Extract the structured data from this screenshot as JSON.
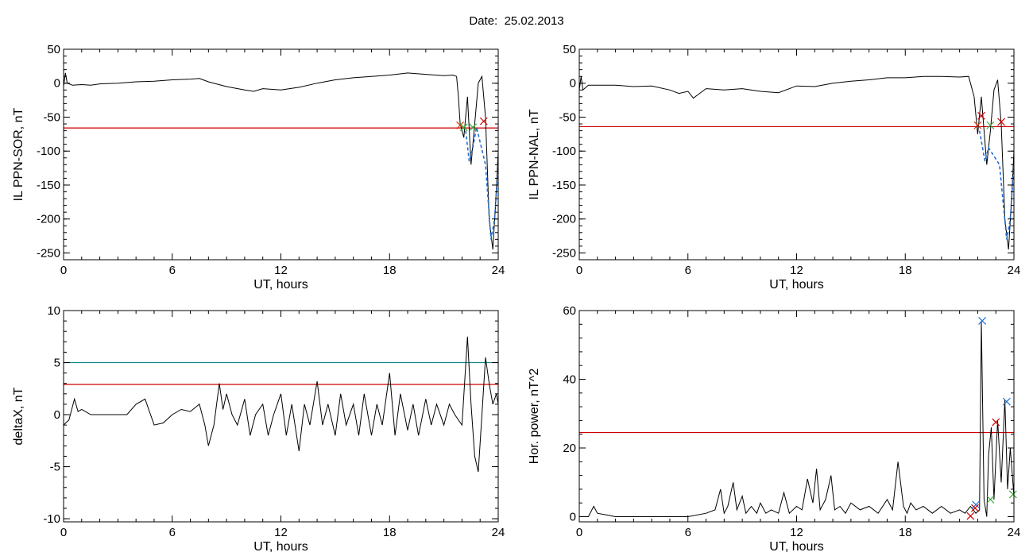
{
  "header": {
    "date_label": "Date:",
    "date_value": "25.02.2013"
  },
  "chart_data": [
    {
      "id": "il-sor",
      "type": "line",
      "xlabel": "UT, hours",
      "ylabel": "IL PPN-SOR, nT",
      "xlim": [
        0,
        24
      ],
      "ylim": [
        -260,
        50
      ],
      "xticks": [
        "0",
        "6",
        "12",
        "18",
        "24"
      ],
      "yticks": [
        "50",
        "0",
        "-50",
        "-100",
        "-150",
        "-200",
        "-250"
      ],
      "series": [
        {
          "color": "#000000",
          "x": [
            0,
            0.1,
            0.2,
            0.5,
            1,
            1.5,
            2,
            3,
            4,
            5,
            6,
            7,
            7.5,
            8,
            9,
            10,
            10.5,
            11,
            12,
            13,
            14,
            15,
            16,
            17,
            18,
            19,
            20,
            21,
            21.5,
            21.7,
            21.8,
            21.9
          ],
          "y": [
            -5,
            15,
            0,
            -3,
            -2,
            -3,
            -1,
            0,
            2,
            3,
            5,
            6,
            7,
            2,
            -5,
            -10,
            -12,
            -8,
            -10,
            -6,
            0,
            5,
            8,
            10,
            12,
            15,
            13,
            11,
            12,
            10,
            -20,
            -60
          ]
        },
        {
          "color": "#000000",
          "x": [
            21.9,
            22.1,
            22.3,
            22.5,
            22.7,
            22.9,
            23.1,
            23.3,
            23.5,
            23.7,
            23.85,
            24
          ],
          "y": [
            -60,
            -80,
            -20,
            -120,
            -60,
            0,
            10,
            -50,
            -200,
            -245,
            -180,
            -100
          ]
        },
        {
          "color": "#1f6fd6",
          "dash": "4,3",
          "x": [
            22.2,
            22.4,
            22.6,
            22.8,
            23.3,
            23.6,
            23.8,
            24
          ],
          "y": [
            -70,
            -115,
            -95,
            -65,
            -120,
            -230,
            -200,
            -120
          ]
        }
      ],
      "hlines": [
        {
          "y": -66,
          "color": "#cc0000"
        }
      ],
      "markers": [
        {
          "x": 21.9,
          "y": -62,
          "color": "#cc3300"
        },
        {
          "x": 22.1,
          "y": -65,
          "color": "#33aa33"
        },
        {
          "x": 22.6,
          "y": -65,
          "color": "#33aa33"
        },
        {
          "x": 23.2,
          "y": -56,
          "color": "#cc0000"
        }
      ]
    },
    {
      "id": "il-nal",
      "type": "line",
      "xlabel": "UT, hours",
      "ylabel": "IL PPN-NAL, nT",
      "xlim": [
        0,
        24
      ],
      "ylim": [
        -260,
        50
      ],
      "xticks": [
        "0",
        "6",
        "12",
        "18",
        "24"
      ],
      "yticks": [
        "50",
        "0",
        "-50",
        "-100",
        "-150",
        "-200",
        "-250"
      ],
      "series": [
        {
          "color": "#000000",
          "x": [
            0,
            0.1,
            0.2,
            0.5,
            1,
            2,
            3,
            4,
            5,
            5.5,
            6,
            6.3,
            6.5,
            7,
            8,
            9,
            10,
            11,
            12,
            13,
            14,
            15,
            16,
            17,
            18,
            19,
            20,
            21,
            21.5,
            21.8
          ],
          "y": [
            -10,
            10,
            -10,
            -3,
            -3,
            -3,
            -5,
            -4,
            -10,
            -15,
            -12,
            -22,
            -18,
            -8,
            -10,
            -8,
            -12,
            -14,
            -4,
            -5,
            0,
            3,
            5,
            8,
            8,
            10,
            10,
            9,
            10,
            -20
          ]
        },
        {
          "color": "#000000",
          "x": [
            21.8,
            22.0,
            22.2,
            22.5,
            22.7,
            22.9,
            23.1,
            23.3,
            23.5,
            23.7,
            23.85,
            24
          ],
          "y": [
            -20,
            -75,
            -20,
            -120,
            -70,
            -10,
            5,
            -60,
            -200,
            -245,
            -180,
            -100
          ]
        },
        {
          "color": "#1f6fd6",
          "dash": "4,3",
          "x": [
            22.1,
            22.4,
            22.6,
            23.2,
            23.6,
            23.8,
            24
          ],
          "y": [
            -70,
            -115,
            -95,
            -120,
            -230,
            -200,
            -120
          ]
        }
      ],
      "hlines": [
        {
          "y": -64,
          "color": "#cc0000"
        }
      ],
      "markers": [
        {
          "x": 22.0,
          "y": -62,
          "color": "#cc3300"
        },
        {
          "x": 22.2,
          "y": -48,
          "color": "#cc0000"
        },
        {
          "x": 22.7,
          "y": -62,
          "color": "#33aa33"
        },
        {
          "x": 23.3,
          "y": -57,
          "color": "#cc0000"
        }
      ]
    },
    {
      "id": "delta-x",
      "type": "line",
      "xlabel": "UT, hours",
      "ylabel": "deltaX, nT",
      "xlim": [
        0,
        24
      ],
      "ylim": [
        -10.3,
        10
      ],
      "xticks": [
        "0",
        "6",
        "12",
        "18",
        "24"
      ],
      "yticks": [
        "10",
        "5",
        "0",
        "-5",
        "-10"
      ],
      "series": [
        {
          "color": "#000000",
          "x": [
            0,
            0.3,
            0.6,
            0.8,
            1,
            1.5,
            2,
            2.5,
            3,
            3.5,
            4,
            4.5,
            5,
            5.5,
            6,
            6.5,
            7,
            7.5,
            7.8,
            8,
            8.3,
            8.6,
            8.8,
            9,
            9.3,
            9.6,
            10,
            10.3,
            10.6,
            11,
            11.3,
            11.6,
            12,
            12.3,
            12.6,
            13,
            13.3,
            13.6,
            14,
            14.3,
            14.6,
            15,
            15.3,
            15.6,
            16,
            16.3,
            16.6,
            17,
            17.3,
            17.6,
            18,
            18.3,
            18.6,
            19,
            19.3,
            19.6,
            20,
            20.3,
            20.6,
            21,
            21.3,
            21.6,
            22,
            22.3,
            22.5,
            22.7,
            22.9,
            23.1,
            23.3,
            23.5,
            23.7,
            23.9,
            24
          ],
          "y": [
            -1,
            -0.5,
            1.5,
            0.3,
            0.5,
            0,
            0,
            0,
            0,
            0,
            1,
            1.5,
            -1,
            -0.8,
            0,
            0.5,
            0.3,
            1,
            -1,
            -3,
            -1,
            3,
            0.5,
            2,
            0,
            -1,
            1.5,
            -2,
            0,
            1,
            -2,
            0,
            2,
            -2,
            1,
            -3.5,
            1,
            -1,
            3.2,
            -1,
            1,
            -2,
            2,
            -1,
            1,
            -2,
            2,
            -2,
            1,
            -1,
            4,
            -2,
            2,
            -1.5,
            1,
            -2,
            1.5,
            -1,
            1,
            -1,
            1,
            0,
            -1,
            7.5,
            1,
            -4,
            -5.5,
            0,
            5.5,
            3,
            1,
            2,
            1
          ]
        }
      ],
      "hlines": [
        {
          "y": 5,
          "color": "#138a8a"
        },
        {
          "y": 2.9,
          "color": "#cc0000"
        }
      ],
      "markers": []
    },
    {
      "id": "hor-power",
      "type": "line",
      "xlabel": "UT, hours",
      "ylabel": "Hor. power, nT^2",
      "xlim": [
        0,
        24
      ],
      "ylim": [
        -1.5,
        60
      ],
      "xticks": [
        "0",
        "6",
        "12",
        "18",
        "24"
      ],
      "yticks": [
        "60",
        "40",
        "20",
        "0"
      ],
      "series": [
        {
          "color": "#000000",
          "x": [
            0,
            0.5,
            0.8,
            1,
            1.5,
            2,
            3,
            4,
            5,
            6,
            7,
            7.5,
            7.8,
            8,
            8.2,
            8.5,
            8.7,
            9,
            9.2,
            9.5,
            9.8,
            10,
            10.3,
            10.6,
            11,
            11.3,
            11.6,
            12,
            12.3,
            12.6,
            12.9,
            13.1,
            13.3,
            13.6,
            13.9,
            14.1,
            14.4,
            14.7,
            15,
            15.5,
            16,
            16.5,
            17,
            17.3,
            17.6,
            17.9,
            18.1,
            18.3,
            18.6,
            19,
            19.5,
            20,
            20.5,
            21,
            21.3,
            21.6,
            21.9,
            22.1,
            22.2,
            22.35,
            22.5,
            22.6,
            22.75,
            22.9,
            23.1,
            23.3,
            23.5,
            23.65,
            23.8,
            24
          ],
          "y": [
            0,
            0,
            3,
            1,
            0.5,
            0,
            0,
            0,
            0,
            0,
            1,
            2,
            8,
            1,
            3,
            10,
            2,
            6,
            1,
            3,
            1,
            4,
            1,
            2,
            1,
            7,
            1,
            3,
            2,
            11,
            4,
            14,
            2,
            5,
            12,
            2,
            3,
            1,
            4,
            2,
            3,
            1,
            5,
            2,
            16,
            3,
            1,
            4,
            2,
            3,
            1,
            3,
            1,
            2,
            1,
            3,
            1,
            2,
            57,
            5,
            0,
            18,
            26,
            5,
            28,
            10,
            34,
            8,
            20,
            6
          ]
        }
      ],
      "hlines": [
        {
          "y": 24.5,
          "color": "#cc0000"
        }
      ],
      "markers": [
        {
          "x": 22.25,
          "y": 57,
          "color": "#1f6fd6"
        },
        {
          "x": 23.6,
          "y": 33.5,
          "color": "#1f6fd6"
        },
        {
          "x": 23.0,
          "y": 27.5,
          "color": "#cc0000"
        },
        {
          "x": 21.9,
          "y": 3.5,
          "color": "#1f6fd6"
        },
        {
          "x": 21.85,
          "y": 2.5,
          "color": "#cc0000"
        },
        {
          "x": 21.6,
          "y": 0.2,
          "color": "#cc0000"
        },
        {
          "x": 22.7,
          "y": 5,
          "color": "#33aa33"
        },
        {
          "x": 23.95,
          "y": 6.5,
          "color": "#33aa33"
        }
      ]
    }
  ]
}
